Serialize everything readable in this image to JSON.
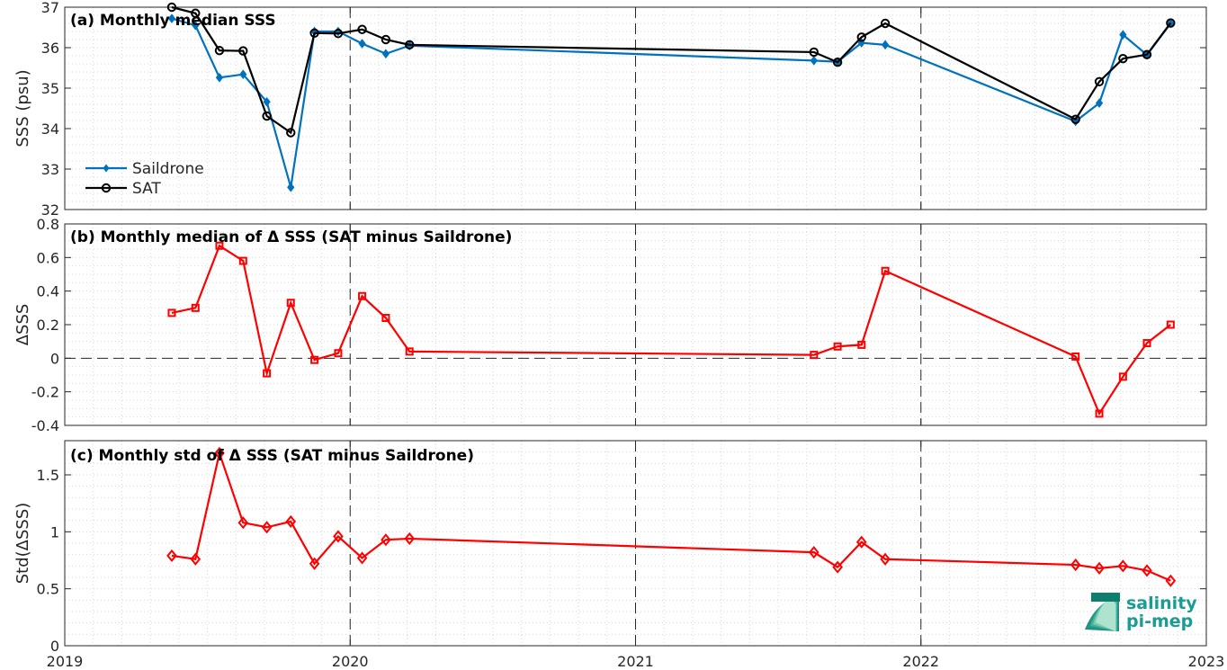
{
  "chart_data": [
    {
      "type": "line",
      "title": "(a) Monthly median SSS",
      "ylabel": "SSS (psu)",
      "xlim": [
        2019.0,
        2023.0
      ],
      "ylim": [
        32,
        37
      ],
      "xticks": [
        2019,
        2020,
        2021,
        2022,
        2023
      ],
      "yticks": [
        32,
        33,
        34,
        35,
        36,
        37
      ],
      "grid": "dotted major and minor",
      "legend_position": "lower-left",
      "series": [
        {
          "name": "Saildrone",
          "color": "#0072BD",
          "marker": "filled-diamond",
          "x": [
            2019.375,
            2019.458,
            2019.542,
            2019.625,
            2019.708,
            2019.792,
            2019.875,
            2019.958,
            2020.042,
            2020.125,
            2020.208,
            2021.625,
            2021.708,
            2021.792,
            2021.875,
            2022.542,
            2022.625,
            2022.708,
            2022.792,
            2022.875
          ],
          "y": [
            36.72,
            36.55,
            35.26,
            35.34,
            34.66,
            32.55,
            36.4,
            36.4,
            36.1,
            35.85,
            36.05,
            35.68,
            35.65,
            36.12,
            36.07,
            34.18,
            34.63,
            36.32,
            35.82,
            36.6
          ]
        },
        {
          "name": "SAT",
          "color": "#000000",
          "marker": "open-circle",
          "x": [
            2019.375,
            2019.458,
            2019.542,
            2019.625,
            2019.708,
            2019.792,
            2019.875,
            2019.958,
            2020.042,
            2020.125,
            2020.208,
            2021.625,
            2021.708,
            2021.792,
            2021.875,
            2022.542,
            2022.625,
            2022.708,
            2022.792,
            2022.875
          ],
          "y": [
            37.0,
            36.85,
            35.93,
            35.92,
            34.31,
            33.9,
            36.36,
            36.35,
            36.45,
            36.2,
            36.07,
            35.89,
            35.64,
            36.26,
            36.6,
            34.23,
            35.16,
            35.73,
            35.83,
            36.61
          ]
        }
      ],
      "vlines_x": [
        2020,
        2021,
        2022
      ]
    },
    {
      "type": "line",
      "title": "(b) Monthly median of Δ SSS (SAT minus Saildrone)",
      "ylabel": "ΔSSS",
      "xlim": [
        2019.0,
        2023.0
      ],
      "ylim": [
        -0.4,
        0.8
      ],
      "xticks": [
        2019,
        2020,
        2021,
        2022,
        2023
      ],
      "yticks": [
        -0.4,
        -0.2,
        0,
        0.2,
        0.4,
        0.6,
        0.8
      ],
      "ytick_labels": [
        "-0.4",
        "-0.2",
        "0",
        "0.2",
        "0.4",
        "0.6",
        "0.8"
      ],
      "grid": "dotted major and minor",
      "zero_line": true,
      "series": [
        {
          "color": "#FF0000",
          "marker": "open-square",
          "x": [
            2019.375,
            2019.458,
            2019.542,
            2019.625,
            2019.708,
            2019.792,
            2019.875,
            2019.958,
            2020.042,
            2020.125,
            2020.208,
            2021.625,
            2021.708,
            2021.792,
            2021.875,
            2022.542,
            2022.625,
            2022.708,
            2022.792,
            2022.875
          ],
          "y": [
            0.27,
            0.3,
            0.67,
            0.58,
            -0.09,
            0.33,
            -0.01,
            0.03,
            0.37,
            0.24,
            0.04,
            0.02,
            0.07,
            0.08,
            0.52,
            0.01,
            -0.33,
            -0.11,
            0.09,
            0.2
          ]
        }
      ],
      "vlines_x": [
        2020,
        2021,
        2022
      ]
    },
    {
      "type": "line",
      "title": "(c) Monthly std of Δ SSS (SAT minus Saildrone)",
      "ylabel": "Std(ΔSSS)",
      "xlim": [
        2019.0,
        2023.0
      ],
      "ylim": [
        0,
        1.8
      ],
      "xticks": [
        2019,
        2020,
        2021,
        2022,
        2023
      ],
      "xtick_labels": [
        "2019",
        "2020",
        "2021",
        "2022",
        "2023"
      ],
      "yticks": [
        0,
        0.5,
        1,
        1.5
      ],
      "ytick_labels": [
        "0",
        "0.5",
        "1",
        "1.5"
      ],
      "grid": "dotted major and minor",
      "series": [
        {
          "color": "#FF0000",
          "marker": "open-diamond",
          "x": [
            2019.375,
            2019.458,
            2019.542,
            2019.625,
            2019.708,
            2019.792,
            2019.875,
            2019.958,
            2020.042,
            2020.125,
            2020.208,
            2021.625,
            2021.708,
            2021.792,
            2021.875,
            2022.542,
            2022.625,
            2022.708,
            2022.792,
            2022.875
          ],
          "y": [
            0.79,
            0.76,
            1.69,
            1.08,
            1.04,
            1.09,
            0.72,
            0.96,
            0.77,
            0.93,
            0.94,
            0.82,
            0.69,
            0.91,
            0.76,
            0.71,
            0.68,
            0.7,
            0.66,
            0.57
          ]
        }
      ],
      "vlines_x": [
        2020,
        2021,
        2022
      ]
    }
  ],
  "logo": {
    "line1": "salinity",
    "line2": "pi-mep"
  }
}
